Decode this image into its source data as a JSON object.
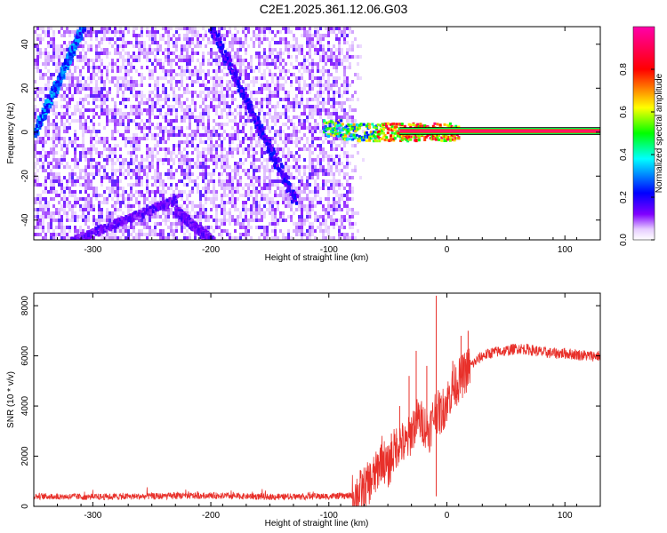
{
  "title": "C2E1.2025.361.12.06.G03",
  "chart_data": [
    {
      "type": "heatmap",
      "name": "spectrogram",
      "xlabel": "Height of straight line (km)",
      "ylabel": "Frequency (Hz)",
      "xlim": [
        -350,
        130
      ],
      "ylim": [
        -49,
        48
      ],
      "xticks": [
        -300,
        -200,
        -100,
        0,
        100
      ],
      "yticks": [
        -40,
        -20,
        0,
        20,
        40
      ],
      "xtick_labels": [
        "-300",
        "-200",
        "-100",
        "0",
        "100"
      ],
      "ytick_labels": [
        "-40",
        "-20",
        "0",
        "20",
        "40"
      ],
      "colorbar": {
        "label": "Normalized spectral amplitude",
        "range": [
          0,
          1
        ],
        "ticks": [
          0.0,
          0.2,
          0.4,
          0.6,
          0.8
        ],
        "tick_labels": [
          "0.0",
          "0.2",
          "0.4",
          "0.6",
          "0.8"
        ],
        "colors": [
          "#ffffff",
          "#8000ff",
          "#0000ff",
          "#00ffff",
          "#00ff00",
          "#ffff00",
          "#ff0000",
          "#ff00aa"
        ]
      },
      "features": {
        "carrier_line": {
          "x_from": -105,
          "x_to": 130,
          "frequency_hz": 0.5,
          "amplitude": 1.0
        },
        "diagonal_tracks": [
          {
            "x": [
              -350,
              -310
            ],
            "y": [
              0,
              48
            ],
            "amplitude": 0.3
          },
          {
            "x": [
              -200,
              -130
            ],
            "y": [
              48,
              -30
            ],
            "amplitude": 0.2
          },
          {
            "x": [
              -320,
              -230
            ],
            "y": [
              -49,
              -30
            ],
            "amplitude": 0.15
          },
          {
            "x": [
              -230,
              -200
            ],
            "y": [
              -35,
              -49
            ],
            "amplitude": 0.15
          }
        ],
        "noise_region_x": [
          -350,
          -85
        ]
      }
    },
    {
      "type": "line",
      "name": "snr",
      "xlabel": "Height of straight line (km)",
      "ylabel": "SNR (10 * v/v)",
      "xlim": [
        -350,
        130
      ],
      "ylim": [
        0,
        8500
      ],
      "xticks": [
        -300,
        -200,
        -100,
        0,
        100
      ],
      "yticks": [
        0,
        2000,
        4000,
        6000,
        8000
      ],
      "xtick_labels": [
        "-300",
        "-200",
        "-100",
        "0",
        "100"
      ],
      "ytick_labels": [
        "0",
        "2000",
        "4000",
        "6000",
        "8000"
      ],
      "series": [
        {
          "name": "SNR",
          "color": "#e8302a",
          "x": [
            -350,
            -300,
            -250,
            -200,
            -150,
            -100,
            -80,
            -70,
            -60,
            -55,
            -50,
            -45,
            -40,
            -35,
            -30,
            -25,
            -20,
            -15,
            -10,
            -5,
            0,
            5,
            10,
            15,
            20,
            25,
            30,
            40,
            50,
            60,
            70,
            80,
            90,
            100,
            110,
            120,
            130
          ],
          "y": [
            400,
            380,
            400,
            430,
            380,
            400,
            420,
            700,
            1300,
            2000,
            1500,
            2200,
            2600,
            2400,
            3000,
            3500,
            3300,
            3000,
            3800,
            3700,
            4200,
            4700,
            5000,
            5300,
            5600,
            5800,
            6000,
            6150,
            6200,
            6300,
            6250,
            6150,
            6100,
            6100,
            6050,
            6000,
            6000
          ],
          "spikes": [
            {
              "x": -26,
              "y": 6200
            },
            {
              "x": -32,
              "y": 5200
            },
            {
              "x": -40,
              "y": 4000
            },
            {
              "x": -47,
              "y": 2900
            },
            {
              "x": -17,
              "y": 5600
            },
            {
              "x": -9,
              "y": 8400
            },
            {
              "x": -9,
              "y": 400
            },
            {
              "x": 18,
              "y": 7000
            },
            {
              "x": 12,
              "y": 6800
            },
            {
              "x": 5,
              "y": 5800
            }
          ]
        }
      ]
    }
  ]
}
